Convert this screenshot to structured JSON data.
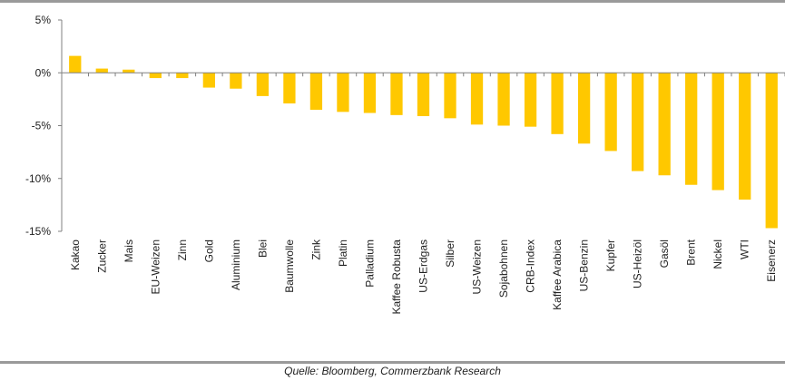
{
  "source_note": "Quelle: Bloomberg, Commerzbank Research",
  "chart_data": {
    "type": "bar",
    "title": "",
    "xlabel": "",
    "ylabel": "",
    "ylim": [
      -15,
      5
    ],
    "yticks": [
      5,
      0,
      -5,
      -10,
      -15
    ],
    "ytick_labels": [
      "5%",
      "0%",
      "-5%",
      "-10%",
      "-15%"
    ],
    "grid": false,
    "bar_color": "#FFC800",
    "axis_color": "#808080",
    "categories": [
      "Kakao",
      "Zucker",
      "Mais",
      "EU-Weizen",
      "Zinn",
      "Gold",
      "Aluminium",
      "Blei",
      "Baumwolle",
      "Zink",
      "Platin",
      "Palladium",
      "Kaffee Robusta",
      "US-Erdgas",
      "Silber",
      "US-Weizen",
      "Sojabohnen",
      "CRB-Index",
      "Kaffee Arabica",
      "US-Benzin",
      "Kupfer",
      "US-Heizöl",
      "Gasöl",
      "Brent",
      "Nickel",
      "WTI",
      "Eisenerz"
    ],
    "values": [
      1.6,
      0.4,
      0.3,
      -0.5,
      -0.5,
      -1.4,
      -1.5,
      -2.2,
      -2.9,
      -3.5,
      -3.7,
      -3.8,
      -4.0,
      -4.1,
      -4.3,
      -4.9,
      -5.0,
      -5.1,
      -5.8,
      -6.7,
      -7.4,
      -9.3,
      -9.7,
      -10.6,
      -11.1,
      -12.0,
      -14.7
    ]
  }
}
